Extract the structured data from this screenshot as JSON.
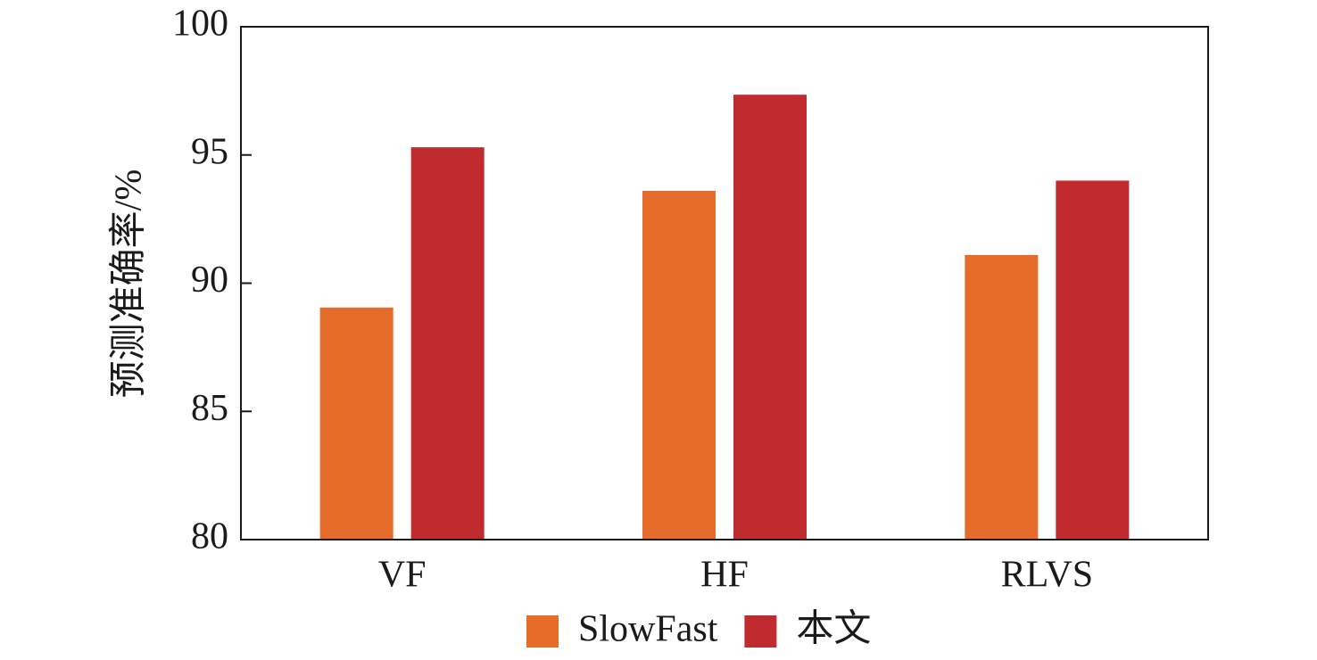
{
  "chart_data": {
    "type": "bar",
    "y_label": "预测准确率/%",
    "categories": [
      "VF",
      "HF",
      "RLVS"
    ],
    "series": [
      {
        "name": "SlowFast",
        "color": "#e66c2c",
        "values": [
          89.05,
          93.6,
          91.1
        ]
      },
      {
        "name": "本文",
        "color": "#c02b30",
        "values": [
          95.3,
          97.35,
          94.0
        ]
      }
    ],
    "ylim": [
      80,
      100
    ],
    "yticks": [
      80,
      85,
      90,
      95,
      100
    ],
    "legend": "bottom"
  }
}
